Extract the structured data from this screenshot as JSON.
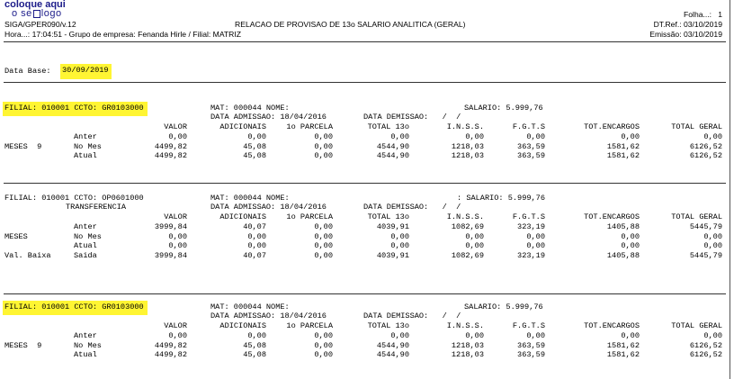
{
  "header": {
    "logo_line1": "coloque aqui",
    "logo_line2a": "o se",
    "logo_line2b": "logo",
    "program": "SIGA/GPER090/v.12",
    "time_line": "Hora...: 17:04:51 - Grupo de empresa: Fenanda Hirle / Filial: MATRIZ",
    "title": "RELACAO DE PROVISAO DE 13o SALARIO ANALITICA (GERAL)",
    "folha": "Folha...:   1",
    "dt_ref": "DT.Ref.: 03/10/2019",
    "emissao": "Emissão: 03/10/2019"
  },
  "data_base": {
    "label": "Data Base:",
    "value": "30/09/2019"
  },
  "columns": [
    "VALOR",
    "ADICIONAIS",
    "1o PARCELA",
    "TOTAL 13o",
    "I.N.S.S.",
    "F.G.T.S",
    "TOT.ENCARGOS",
    "TOTAL GERAL"
  ],
  "sections": [
    {
      "filial": "FILIAL: 010001 CCTO: GR0103000",
      "sub": "",
      "mat": "MAT: 000044 NOME:",
      "salario": "SALARIO: 5.999,76",
      "admissao": "DATA ADMISSAO: 18/04/2016",
      "demissao": "DATA DEMISSAO:   /  /",
      "rows": [
        {
          "g1": "",
          "g2": "Anter",
          "v": [
            "0,00",
            "0,00",
            "0,00",
            "0,00",
            "0,00",
            "0,00",
            "0,00",
            "0,00"
          ]
        },
        {
          "g1": "MESES  9",
          "g2": "No Mes",
          "v": [
            "4499,82",
            "45,08",
            "0,00",
            "4544,90",
            "1218,03",
            "363,59",
            "1581,62",
            "6126,52"
          ]
        },
        {
          "g1": "",
          "g2": "Atual",
          "v": [
            "4499,82",
            "45,08",
            "0,00",
            "4544,90",
            "1218,03",
            "363,59",
            "1581,62",
            "6126,52"
          ]
        }
      ]
    },
    {
      "filial": "FILIAL: 010001 CCTO: OP0601000",
      "sub": "TRANSFERENCIA",
      "mat": "MAT: 000044 NOME:",
      "salario": ": SALARIO: 5.999,76",
      "admissao": "DATA ADMISSAO: 18/04/2016",
      "demissao": "DATA DEMISSAO:   /  /",
      "rows": [
        {
          "g1": "",
          "g2": "Anter",
          "v": [
            "3999,84",
            "40,07",
            "0,00",
            "4039,91",
            "1082,69",
            "323,19",
            "1405,88",
            "5445,79"
          ]
        },
        {
          "g1": "MESES",
          "g2": "No Mes",
          "v": [
            "0,00",
            "0,00",
            "0,00",
            "0,00",
            "0,00",
            "0,00",
            "0,00",
            "0,00"
          ]
        },
        {
          "g1": "",
          "g2": "Atual",
          "v": [
            "0,00",
            "0,00",
            "0,00",
            "0,00",
            "0,00",
            "0,00",
            "0,00",
            "0,00"
          ]
        },
        {
          "g1": "Val. Baixa",
          "g2": "Saida",
          "v": [
            "3999,84",
            "40,07",
            "0,00",
            "4039,91",
            "1082,69",
            "323,19",
            "1405,88",
            "5445,79"
          ]
        }
      ]
    },
    {
      "filial": "FILIAL: 010001 CCTO: GR0103000",
      "sub": "",
      "mat": "MAT: 000044 NOME:",
      "salario": "SALARIO: 5.999,76",
      "admissao": "DATA ADMISSAO: 18/04/2016",
      "demissao": "DATA DEMISSAO:   /  /",
      "rows": [
        {
          "g1": "",
          "g2": "Anter",
          "v": [
            "0,00",
            "0,00",
            "0,00",
            "0,00",
            "0,00",
            "0,00",
            "0,00",
            "0,00"
          ]
        },
        {
          "g1": "MESES  9",
          "g2": "No Mes",
          "v": [
            "4499,82",
            "45,08",
            "0,00",
            "4544,90",
            "1218,03",
            "363,59",
            "1581,62",
            "6126,52"
          ]
        },
        {
          "g1": "",
          "g2": "Atual",
          "v": [
            "4499,82",
            "45,08",
            "0,00",
            "4544,90",
            "1218,03",
            "363,59",
            "1581,62",
            "6126,52"
          ]
        }
      ]
    }
  ]
}
